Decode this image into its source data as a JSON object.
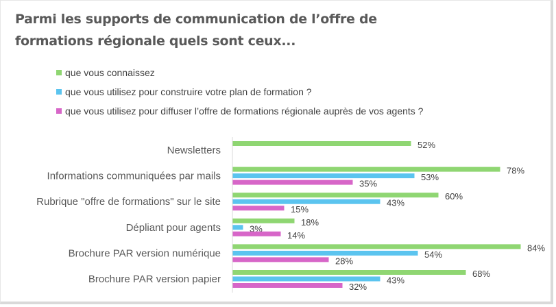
{
  "chart_data": {
    "type": "bar",
    "orientation": "horizontal",
    "title": "Parmi les supports de communication de l’offre de formations régionale quels sont ceux...",
    "title_lines": [
      "Parmi les supports de communication de l’offre de",
      "formations régionale quels sont ceux..."
    ],
    "xlabel": "",
    "ylabel": "",
    "xlim": [
      0,
      100
    ],
    "grid": false,
    "legend_position": "top-left",
    "value_format": "percent",
    "categories": [
      "Newsletters",
      "Informations communiquées par mails",
      "Rubrique \"offre de formations\" sur le site",
      "Dépliant pour agents",
      "Brochure PAR version numérique",
      "Brochure PAR version papier"
    ],
    "series": [
      {
        "name": "que vous connaissez",
        "color": "#8fd672",
        "values": [
          52,
          78,
          60,
          18,
          84,
          68
        ],
        "labels": [
          "52%",
          "78%",
          "60%",
          "18%",
          "84%",
          "68%"
        ]
      },
      {
        "name": "que vous utilisez pour construire votre plan de formation ?",
        "color": "#5bc4ef",
        "values": [
          null,
          53,
          43,
          3,
          54,
          43
        ],
        "labels": [
          null,
          "53%",
          "43%",
          "3%",
          "54%",
          "43%"
        ]
      },
      {
        "name": "que vous utilisez pour diffuser l’offre de formations régionale auprès de vos agents ?",
        "color": "#d766c8",
        "values": [
          null,
          35,
          15,
          14,
          28,
          32
        ],
        "labels": [
          null,
          "35%",
          "15%",
          "14%",
          "28%",
          "32%"
        ]
      }
    ]
  }
}
